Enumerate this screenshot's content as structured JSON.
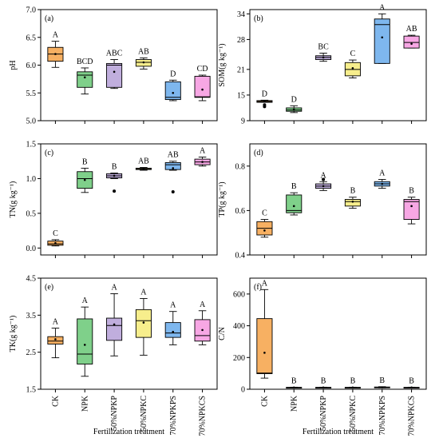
{
  "figure": {
    "xlabel": "Fertilization treatment",
    "treatments": [
      "CK",
      "NPK",
      "50%NPKP",
      "50%NPKC",
      "70%NPKPS",
      "70%NPKCS"
    ]
  },
  "chart_data": [
    {
      "type": "box",
      "panel": "(a)",
      "ylabel": "pH",
      "ylim": [
        5.0,
        7.0
      ],
      "yticks": [
        5.0,
        5.5,
        6.0,
        6.5,
        7.0
      ],
      "ytick_labels": [
        "5.0",
        "5.5",
        "6.0",
        "6.5",
        "7.0"
      ],
      "categories": [
        "CK",
        "NPK",
        "50%NPKP",
        "50%NPKC",
        "70%NPKPS",
        "70%NPKCS"
      ],
      "colors": [
        "#f7b062",
        "#7fd08a",
        "#c0aedd",
        "#f7ee8c",
        "#7eb7ee",
        "#f7a7e4"
      ],
      "boxes": [
        {
          "whisker_low": 5.96,
          "q1": 6.07,
          "median": 6.2,
          "q3": 6.32,
          "whisker_high": 6.43,
          "mean": 6.2,
          "outliers": [],
          "letter": "A"
        },
        {
          "whisker_low": 5.48,
          "q1": 5.6,
          "median": 5.82,
          "q3": 5.88,
          "whisker_high": 5.95,
          "mean": 5.78,
          "outliers": [],
          "letter": "BCD"
        },
        {
          "whisker_low": 5.58,
          "q1": 5.6,
          "median": 6.0,
          "q3": 6.03,
          "whisker_high": 6.1,
          "mean": 5.88,
          "outliers": [],
          "letter": "ABC"
        },
        {
          "whisker_low": 5.93,
          "q1": 5.98,
          "median": 6.05,
          "q3": 6.1,
          "whisker_high": 6.13,
          "mean": 6.05,
          "outliers": [],
          "letter": "AB"
        },
        {
          "whisker_low": 5.36,
          "q1": 5.38,
          "median": 5.42,
          "q3": 5.7,
          "whisker_high": 5.73,
          "mean": 5.5,
          "outliers": [],
          "letter": "D"
        },
        {
          "whisker_low": 5.36,
          "q1": 5.42,
          "median": 5.43,
          "q3": 5.8,
          "whisker_high": 5.82,
          "mean": 5.56,
          "outliers": [],
          "letter": "CD"
        }
      ]
    },
    {
      "type": "box",
      "panel": "(b)",
      "ylabel": "SOM(g kg⁻¹)",
      "ylim": [
        9,
        35
      ],
      "yticks": [
        9,
        15,
        21,
        28,
        34
      ],
      "ytick_labels": [
        "9",
        "15",
        "21",
        "28",
        "34"
      ],
      "categories": [
        "CK",
        "NPK",
        "50%NPKP",
        "50%NPKC",
        "70%NPKPS",
        "70%NPKCS"
      ],
      "colors": [
        "#f7b062",
        "#7fd08a",
        "#c0aedd",
        "#f7ee8c",
        "#7eb7ee",
        "#f7a7e4"
      ],
      "boxes": [
        {
          "whisker_low": 13.3,
          "q1": 13.3,
          "median": 13.5,
          "q3": 13.7,
          "whisker_high": 13.8,
          "mean": 13.5,
          "outliers": [
            12.3,
            12.7
          ],
          "letter": "D"
        },
        {
          "whisker_low": 10.9,
          "q1": 11.2,
          "median": 11.5,
          "q3": 12.0,
          "whisker_high": 12.5,
          "mean": 11.6,
          "outliers": [],
          "letter": "D"
        },
        {
          "whisker_low": 22.9,
          "q1": 23.3,
          "median": 23.8,
          "q3": 24.2,
          "whisker_high": 24.8,
          "mean": 23.8,
          "outliers": [],
          "letter": "BC"
        },
        {
          "whisker_low": 19.0,
          "q1": 19.5,
          "median": 21.0,
          "q3": 22.6,
          "whisker_high": 23.2,
          "mean": 21.3,
          "outliers": [],
          "letter": "C"
        },
        {
          "whisker_low": 22.4,
          "q1": 22.4,
          "median": 31.5,
          "q3": 32.8,
          "whisker_high": 34.0,
          "mean": 28.5,
          "outliers": [],
          "letter": "A"
        },
        {
          "whisker_low": 26.0,
          "q1": 26.0,
          "median": 27.3,
          "q3": 28.8,
          "whisker_high": 29.0,
          "mean": 27.0,
          "outliers": [],
          "letter": "AB"
        }
      ]
    },
    {
      "type": "box",
      "panel": "(c)",
      "ylabel": "TN(g kg⁻¹)",
      "ylim": [
        -0.1,
        1.5
      ],
      "yticks": [
        0.0,
        0.5,
        1.0,
        1.5
      ],
      "ytick_labels": [
        "0.0",
        "0.5",
        "1.0",
        "1.5"
      ],
      "categories": [
        "CK",
        "NPK",
        "50%NPKP",
        "50%NPKC",
        "70%NPKPS",
        "70%NPKCS"
      ],
      "colors": [
        "#f7b062",
        "#7fd08a",
        "#c0aedd",
        "#f7ee8c",
        "#7eb7ee",
        "#f7a7e4"
      ],
      "boxes": [
        {
          "whisker_low": 0.03,
          "q1": 0.04,
          "median": 0.06,
          "q3": 0.1,
          "whisker_high": 0.12,
          "mean": 0.07,
          "outliers": [],
          "letter": "C"
        },
        {
          "whisker_low": 0.8,
          "q1": 0.86,
          "median": 1.0,
          "q3": 1.1,
          "whisker_high": 1.15,
          "mean": 0.98,
          "outliers": [],
          "letter": "B"
        },
        {
          "whisker_low": 1.0,
          "q1": 1.01,
          "median": 1.04,
          "q3": 1.07,
          "whisker_high": 1.08,
          "mean": 1.04,
          "outliers": [
            0.82
          ],
          "letter": "B"
        },
        {
          "whisker_low": 1.12,
          "q1": 1.13,
          "median": 1.14,
          "q3": 1.15,
          "whisker_high": 1.16,
          "mean": 1.14,
          "outliers": [],
          "letter": "AB"
        },
        {
          "whisker_low": 1.12,
          "q1": 1.13,
          "median": 1.2,
          "q3": 1.23,
          "whisker_high": 1.25,
          "mean": 1.15,
          "outliers": [
            0.81
          ],
          "letter": "AB"
        },
        {
          "whisker_low": 1.18,
          "q1": 1.2,
          "median": 1.24,
          "q3": 1.28,
          "whisker_high": 1.31,
          "mean": 1.24,
          "outliers": [],
          "letter": "A"
        }
      ]
    },
    {
      "type": "box",
      "panel": "(d)",
      "ylabel": "TP(g kg⁻¹)",
      "ylim": [
        0.4,
        0.9
      ],
      "yticks": [
        0.4,
        0.6,
        0.8
      ],
      "ytick_labels": [
        "0.4",
        "0.6",
        "0.8"
      ],
      "categories": [
        "CK",
        "NPK",
        "50%NPKP",
        "50%NPKC",
        "70%NPKPS",
        "70%NPKCS"
      ],
      "colors": [
        "#f7b062",
        "#7fd08a",
        "#c0aedd",
        "#f7ee8c",
        "#7eb7ee",
        "#f7a7e4"
      ],
      "boxes": [
        {
          "whisker_low": 0.48,
          "q1": 0.49,
          "median": 0.52,
          "q3": 0.55,
          "whisker_high": 0.56,
          "mean": 0.51,
          "outliers": [],
          "letter": "C"
        },
        {
          "whisker_low": 0.58,
          "q1": 0.59,
          "median": 0.6,
          "q3": 0.67,
          "whisker_high": 0.68,
          "mean": 0.62,
          "outliers": [],
          "letter": "B"
        },
        {
          "whisker_low": 0.69,
          "q1": 0.7,
          "median": 0.71,
          "q3": 0.72,
          "whisker_high": 0.73,
          "mean": 0.71,
          "outliers": [
            0.74
          ],
          "letter": "A"
        },
        {
          "whisker_low": 0.61,
          "q1": 0.62,
          "median": 0.64,
          "q3": 0.65,
          "whisker_high": 0.66,
          "mean": 0.64,
          "outliers": [],
          "letter": "B"
        },
        {
          "whisker_low": 0.7,
          "q1": 0.71,
          "median": 0.72,
          "q3": 0.73,
          "whisker_high": 0.74,
          "mean": 0.72,
          "outliers": [],
          "letter": "A"
        },
        {
          "whisker_low": 0.54,
          "q1": 0.56,
          "median": 0.64,
          "q3": 0.65,
          "whisker_high": 0.66,
          "mean": 0.62,
          "outliers": [],
          "letter": "B"
        }
      ]
    },
    {
      "type": "box",
      "panel": "(e)",
      "ylabel": "TK(g kg⁻¹)",
      "ylim": [
        1.5,
        4.5
      ],
      "yticks": [
        1.5,
        2.5,
        3.5,
        4.5
      ],
      "ytick_labels": [
        "1.5",
        "2.5",
        "3.5",
        "4.5"
      ],
      "categories": [
        "CK",
        "NPK",
        "50%NPKP",
        "50%NPKC",
        "70%NPKPS",
        "70%NPKCS"
      ],
      "colors": [
        "#f7b062",
        "#7fd08a",
        "#c0aedd",
        "#f7ee8c",
        "#7eb7ee",
        "#f7a7e4"
      ],
      "boxes": [
        {
          "whisker_low": 2.35,
          "q1": 2.72,
          "median": 2.8,
          "q3": 2.92,
          "whisker_high": 3.15,
          "mean": 2.85,
          "outliers": [],
          "letter": "A"
        },
        {
          "whisker_low": 1.85,
          "q1": 2.18,
          "median": 2.45,
          "q3": 3.4,
          "whisker_high": 3.72,
          "mean": 2.7,
          "outliers": [],
          "letter": "A"
        },
        {
          "whisker_low": 2.4,
          "q1": 2.82,
          "median": 3.22,
          "q3": 3.42,
          "whisker_high": 4.08,
          "mean": 3.25,
          "outliers": [],
          "letter": "A"
        },
        {
          "whisker_low": 2.42,
          "q1": 2.9,
          "median": 3.35,
          "q3": 3.65,
          "whisker_high": 3.95,
          "mean": 3.3,
          "outliers": [],
          "letter": "A"
        },
        {
          "whisker_low": 2.7,
          "q1": 2.9,
          "median": 3.02,
          "q3": 3.3,
          "whisker_high": 3.6,
          "mean": 3.05,
          "outliers": [],
          "letter": "A"
        },
        {
          "whisker_low": 2.7,
          "q1": 2.8,
          "median": 2.95,
          "q3": 3.38,
          "whisker_high": 3.62,
          "mean": 3.1,
          "outliers": [],
          "letter": "A"
        }
      ]
    },
    {
      "type": "box",
      "panel": "(f)",
      "ylabel": "C/N",
      "ylim": [
        0,
        700
      ],
      "yticks": [
        0,
        200,
        400,
        600
      ],
      "ytick_labels": [
        "0",
        "200",
        "400",
        "600"
      ],
      "categories": [
        "CK",
        "NPK",
        "50%NPKP",
        "50%NPKC",
        "70%NPKPS",
        "70%NPKCS"
      ],
      "colors": [
        "#f7b062",
        "#7fd08a",
        "#c0aedd",
        "#f7ee8c",
        "#7eb7ee",
        "#f7a7e4"
      ],
      "boxes": [
        {
          "whisker_low": 70,
          "q1": 98,
          "median": 102,
          "q3": 445,
          "whisker_high": 628,
          "mean": 230,
          "outliers": [],
          "letter": "A"
        },
        {
          "whisker_low": 9,
          "q1": 10,
          "median": 11,
          "q3": 12,
          "whisker_high": 13,
          "mean": 11,
          "outliers": [],
          "letter": "B"
        },
        {
          "whisker_low": 9,
          "q1": 10,
          "median": 11,
          "q3": 12,
          "whisker_high": 13,
          "mean": 11,
          "outliers": [],
          "letter": "B"
        },
        {
          "whisker_low": 9,
          "q1": 10,
          "median": 11,
          "q3": 12,
          "whisker_high": 13,
          "mean": 11,
          "outliers": [],
          "letter": "B"
        },
        {
          "whisker_low": 9,
          "q1": 10,
          "median": 12,
          "q3": 14,
          "whisker_high": 16,
          "mean": 12,
          "outliers": [],
          "letter": "B"
        },
        {
          "whisker_low": 9,
          "q1": 10,
          "median": 11,
          "q3": 12,
          "whisker_high": 13,
          "mean": 11,
          "outliers": [],
          "letter": "B"
        }
      ]
    }
  ]
}
